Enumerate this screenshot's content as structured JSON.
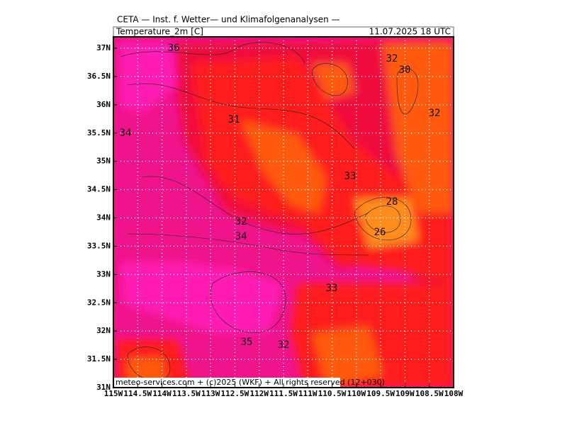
{
  "header": {
    "title": "CETA — Inst. f. Wetter— und Klimafolgenanalysen —",
    "field": "Temperature_2m [C]",
    "date": "11.07.2025 18 UTC"
  },
  "map": {
    "lat_labels": [
      "31N",
      "31.5N",
      "32N",
      "32.5N",
      "33N",
      "33.5N",
      "34N",
      "34.5N",
      "35N",
      "35.5N",
      "36N",
      "36.5N",
      "37N"
    ],
    "lon_labels": [
      "115W",
      "114.5W",
      "114W",
      "113.5W",
      "113W",
      "112.5W",
      "112W",
      "111.5W",
      "111W",
      "110.5W",
      "110W",
      "109.5W",
      "109W",
      "108.5W",
      "108W"
    ],
    "contour_labels": [
      36,
      32,
      30,
      32,
      31,
      34,
      33,
      28,
      32,
      26,
      34,
      33,
      35,
      32
    ],
    "footer": "meteo-services.com + (c)2025 (WKF) + All rights reserved (12+030)"
  }
}
